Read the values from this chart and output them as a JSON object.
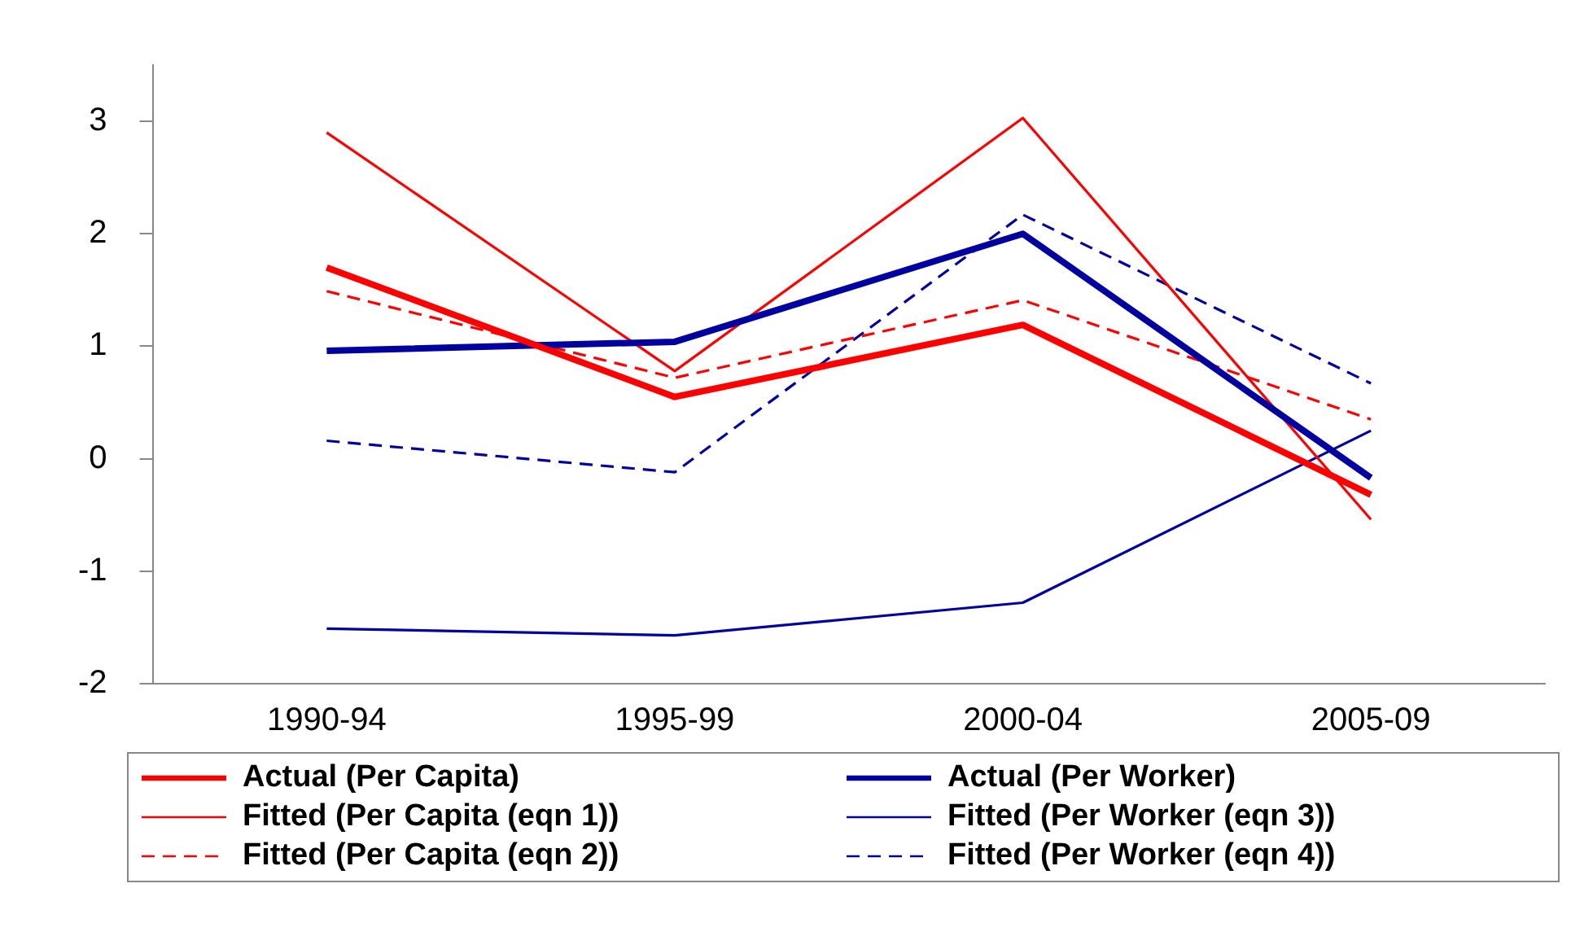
{
  "chart_data": {
    "type": "line",
    "categories": [
      "1990-94",
      "1995-99",
      "2000-04",
      "2005-09"
    ],
    "series": [
      {
        "name": "Actual (Per Capita)",
        "color": "#ff0000",
        "values": [
          1.7,
          0.55,
          1.19,
          -0.32
        ],
        "line_style": "solid"
      },
      {
        "name": "Actual (Per Worker)",
        "color": "#0000a0",
        "values": [
          0.96,
          1.04,
          2.0,
          -0.17
        ],
        "line_style": "solid"
      },
      {
        "name": "Fitted (Per Capita (eqn 1))",
        "color": "#ff0000",
        "values": [
          2.9,
          0.78,
          3.03,
          -0.54
        ],
        "line_style": "solid"
      },
      {
        "name": "Fitted (Per Worker (eqn 3))",
        "color": "#0000a0",
        "values": [
          -1.51,
          -1.57,
          -1.28,
          0.25
        ],
        "line_style": "solid"
      },
      {
        "name": "Fitted (Per Capita (eqn 2))",
        "color": "#ff0000",
        "values": [
          1.49,
          0.72,
          1.41,
          0.35
        ],
        "line_style": "dashed"
      },
      {
        "name": "Fitted (Per Worker (eqn 4))",
        "color": "#0000a0",
        "values": [
          0.16,
          -0.12,
          2.17,
          0.67
        ],
        "line_style": "dashed"
      }
    ],
    "ylim": [
      -2,
      3.5
    ],
    "yticks": [
      -2,
      -1,
      0,
      1,
      2,
      3
    ],
    "grid": false,
    "legend": "bottom",
    "marker": "none"
  }
}
